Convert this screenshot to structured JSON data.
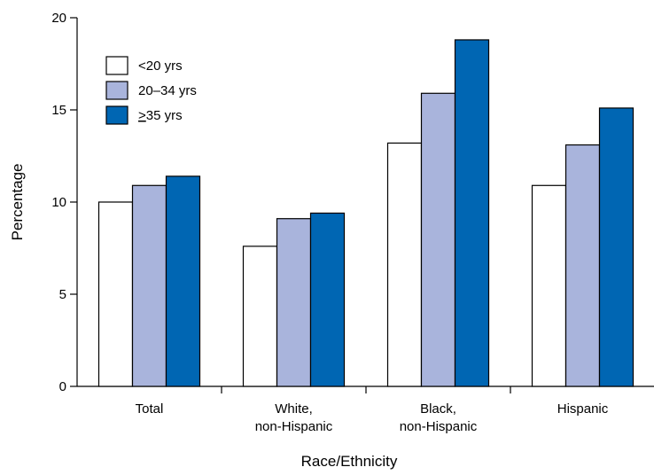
{
  "chart_data": {
    "type": "bar",
    "title": "",
    "xlabel": "Race/Ethnicity",
    "ylabel": "Percentage",
    "ylim": [
      0,
      20
    ],
    "yticks": [
      0,
      5,
      10,
      15,
      20
    ],
    "categories": [
      [
        "Total"
      ],
      [
        "White,",
        "non-Hispanic"
      ],
      [
        "Black,",
        "non-Hispanic"
      ],
      [
        "Hispanic"
      ]
    ],
    "series": [
      {
        "name": "<20 yrs",
        "color": "#ffffff",
        "values": [
          10.0,
          7.6,
          13.2,
          10.9
        ]
      },
      {
        "name": "20–34 yrs",
        "color": "#a9b4dc",
        "values": [
          10.9,
          9.1,
          15.9,
          13.1
        ]
      },
      {
        "name": ">35 yrs",
        "color": "#0066b3",
        "values": [
          11.4,
          9.4,
          18.8,
          15.1
        ]
      }
    ],
    "legend": {
      "position": "top-left"
    },
    "grid": false
  }
}
